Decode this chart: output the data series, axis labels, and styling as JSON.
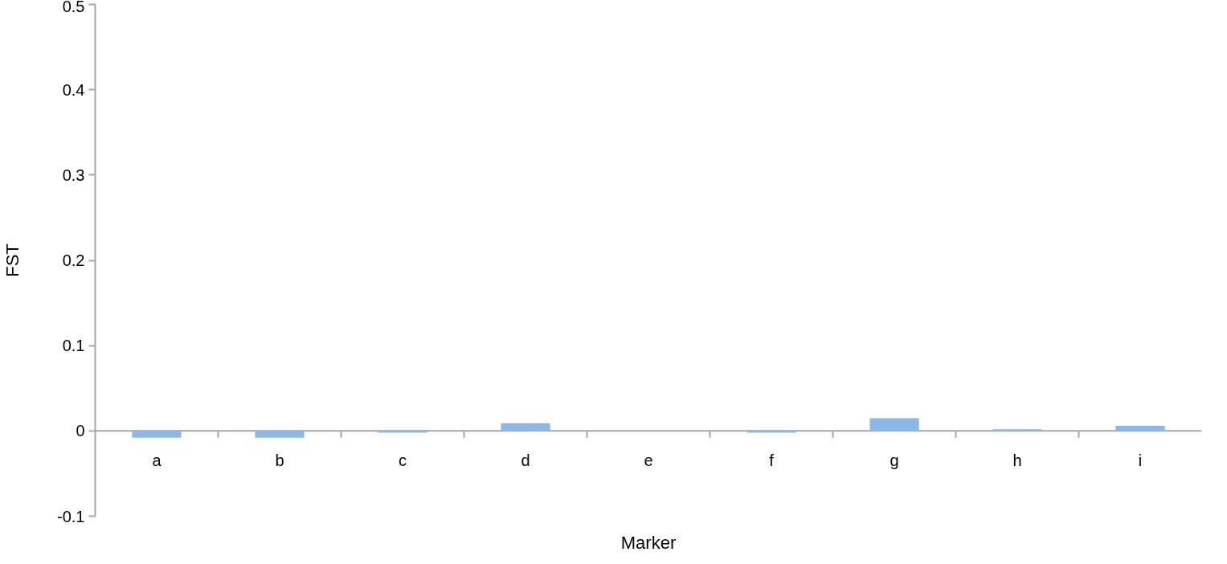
{
  "chart_data": {
    "type": "bar",
    "xlabel": "Marker",
    "ylabel": "FST",
    "categories": [
      "a",
      "b",
      "c",
      "d",
      "e",
      "f",
      "g",
      "h",
      "i"
    ],
    "series": [
      {
        "color": "#8ab8ea",
        "values": [
          -0.008,
          -0.008,
          -0.002,
          0.009,
          0,
          -0.002,
          0.015,
          0.002,
          0.006
        ]
      }
    ],
    "ylim": [
      -0.1,
      0.5
    ],
    "yticks": [
      -0.1,
      0,
      0.1,
      0.2,
      0.3,
      0.4,
      0.5
    ],
    "grid": false
  }
}
